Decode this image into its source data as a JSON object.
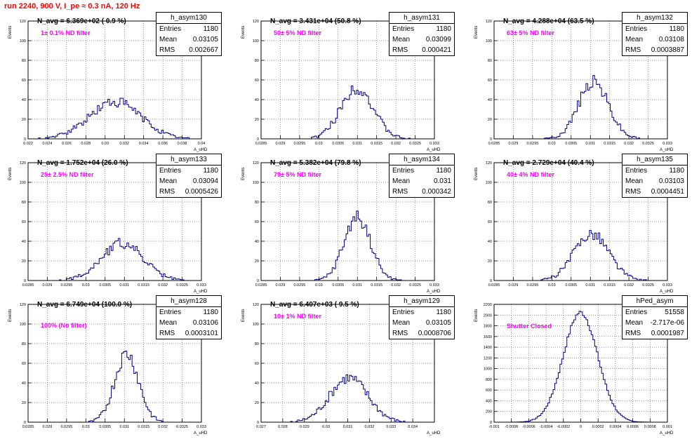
{
  "page_title": "run 2240,   900 V, I_pe ≈ 0.3 nA, 120 Hz",
  "axis": {
    "ylabel": "Events",
    "xlabel": "A_uHD"
  },
  "style": {
    "hist_color": "#000080",
    "filter_color": "#ff00ff",
    "title_color": "#ff0000"
  },
  "chart_data": [
    {
      "type": "bar",
      "name": "h_asym130",
      "navg": "N_avg = 6.369e+02 ( 0.9 %)",
      "filter": "1± 0.1% ND filter",
      "stats": {
        "entries": "1180",
        "mean": "0.03105",
        "rms": "0.002667"
      },
      "stats_labels": {
        "entries": "Entries",
        "mean": "Mean",
        "rms": "RMS"
      },
      "xlim": [
        0.022,
        0.04
      ],
      "ylim": [
        0,
        120
      ],
      "x_ticks": [
        "0.022",
        "0.024",
        "0.026",
        "0.028",
        "0.03",
        "0.032",
        "0.034",
        "0.036",
        "0.038",
        "0.04"
      ],
      "y_ticks": [
        "0",
        "20",
        "40",
        "60",
        "80",
        "100",
        "120"
      ],
      "hist": {
        "mean": 0.03105,
        "sigma": 0.002667,
        "peak": 38,
        "seed": 130
      }
    },
    {
      "type": "bar",
      "name": "h_asym131",
      "navg": "N_avg = 3.431e+04 (50.8 %)",
      "filter": "50± 5% ND filter",
      "stats": {
        "entries": "1180",
        "mean": "0.03099",
        "rms": "0.000421"
      },
      "stats_labels": {
        "entries": "Entries",
        "mean": "Mean",
        "rms": "RMS"
      },
      "xlim": [
        0.0285,
        0.033
      ],
      "ylim": [
        0,
        120
      ],
      "x_ticks": [
        "0.0285",
        "0.029",
        "0.0295",
        "0.03",
        "0.0305",
        "0.031",
        "0.0315",
        "0.032",
        "0.0325",
        "0.033"
      ],
      "y_ticks": [
        "0",
        "20",
        "40",
        "60",
        "80",
        "100",
        "120"
      ],
      "hist": {
        "mean": 0.03099,
        "sigma": 0.000421,
        "peak": 52,
        "seed": 131
      }
    },
    {
      "type": "bar",
      "name": "h_asym132",
      "navg": "N_avg = 4.288e+04 (63.5 %)",
      "filter": "63± 5% ND filter",
      "stats": {
        "entries": "1180",
        "mean": "0.03108",
        "rms": "0.0003887"
      },
      "stats_labels": {
        "entries": "Entries",
        "mean": "Mean",
        "rms": "RMS"
      },
      "xlim": [
        0.0285,
        0.033
      ],
      "ylim": [
        0,
        120
      ],
      "x_ticks": [
        "0.0285",
        "0.029",
        "0.0295",
        "0.03",
        "0.0305",
        "0.031",
        "0.0315",
        "0.032",
        "0.0325",
        "0.033"
      ],
      "y_ticks": [
        "0",
        "20",
        "40",
        "60",
        "80",
        "100",
        "120"
      ],
      "hist": {
        "mean": 0.03108,
        "sigma": 0.0003887,
        "peak": 58,
        "seed": 132
      }
    },
    {
      "type": "bar",
      "name": "h_asym133",
      "navg": "N_avg = 1.752e+04 (26.0 %)",
      "filter": "25± 2.5% ND filter",
      "stats": {
        "entries": "1180",
        "mean": "0.03094",
        "rms": "0.0005426"
      },
      "stats_labels": {
        "entries": "Entries",
        "mean": "Mean",
        "rms": "RMS"
      },
      "xlim": [
        0.0285,
        0.033
      ],
      "ylim": [
        0,
        120
      ],
      "x_ticks": [
        "0.0285",
        "0.029",
        "0.0295",
        "0.03",
        "0.0305",
        "0.031",
        "0.0315",
        "0.032",
        "0.0325",
        "0.033"
      ],
      "y_ticks": [
        "0",
        "20",
        "40",
        "60",
        "80",
        "100",
        "120"
      ],
      "hist": {
        "mean": 0.03094,
        "sigma": 0.0005426,
        "peak": 38,
        "seed": 133
      }
    },
    {
      "type": "bar",
      "name": "h_asym134",
      "navg": "N_avg = 5.382e+04 (79.8 %)",
      "filter": "79± 5% ND filter",
      "stats": {
        "entries": "1180",
        "mean": "0.031",
        "rms": "0.000342"
      },
      "stats_labels": {
        "entries": "Entries",
        "mean": "Mean",
        "rms": "RMS"
      },
      "xlim": [
        0.0285,
        0.033
      ],
      "ylim": [
        0,
        120
      ],
      "x_ticks": [
        "0.0285",
        "0.029",
        "0.0295",
        "0.03",
        "0.0305",
        "0.031",
        "0.0315",
        "0.032",
        "0.0325",
        "0.033"
      ],
      "y_ticks": [
        "0",
        "20",
        "40",
        "60",
        "80",
        "100",
        "120"
      ],
      "hist": {
        "mean": 0.031,
        "sigma": 0.000342,
        "peak": 65,
        "seed": 134
      }
    },
    {
      "type": "bar",
      "name": "h_asym135",
      "navg": "N_avg = 2.729e+04 (40.4 %)",
      "filter": "40± 4% ND filter",
      "stats": {
        "entries": "1180",
        "mean": "0.03103",
        "rms": "0.0004451"
      },
      "stats_labels": {
        "entries": "Entries",
        "mean": "Mean",
        "rms": "RMS"
      },
      "xlim": [
        0.0285,
        0.033
      ],
      "ylim": [
        0,
        120
      ],
      "x_ticks": [
        "0.0285",
        "0.029",
        "0.0295",
        "0.03",
        "0.0305",
        "0.031",
        "0.0315",
        "0.032",
        "0.0325",
        "0.033"
      ],
      "y_ticks": [
        "0",
        "20",
        "40",
        "60",
        "80",
        "100",
        "120"
      ],
      "hist": {
        "mean": 0.03103,
        "sigma": 0.0004451,
        "peak": 48,
        "seed": 135
      }
    },
    {
      "type": "bar",
      "name": "h_asym128",
      "navg": "N_avg = 6.749e+04 (100.0 %)",
      "filter": "100% (No filter)",
      "stats": {
        "entries": "1180",
        "mean": "0.03106",
        "rms": "0.0003101"
      },
      "stats_labels": {
        "entries": "Entries",
        "mean": "Mean",
        "rms": "RMS"
      },
      "xlim": [
        0.0285,
        0.033
      ],
      "ylim": [
        0,
        120
      ],
      "x_ticks": [
        "0.0285",
        "0.029",
        "0.0295",
        "0.03",
        "0.0305",
        "0.031",
        "0.0315",
        "0.032",
        "0.0325",
        "0.033"
      ],
      "y_ticks": [
        "0",
        "20",
        "40",
        "60",
        "80",
        "100",
        "120"
      ],
      "hist": {
        "mean": 0.03106,
        "sigma": 0.0003101,
        "peak": 70,
        "seed": 128
      }
    },
    {
      "type": "bar",
      "name": "h_asym129",
      "navg": "N_avg = 6.407e+03 ( 9.5 %)",
      "filter": "10± 1% ND filter",
      "stats": {
        "entries": "1180",
        "mean": "0.03105",
        "rms": "0.0008706"
      },
      "stats_labels": {
        "entries": "Entries",
        "mean": "Mean",
        "rms": "RMS"
      },
      "xlim": [
        0.027,
        0.035
      ],
      "ylim": [
        0,
        120
      ],
      "x_ticks": [
        "0.027",
        "0.028",
        "0.029",
        "0.03",
        "0.031",
        "0.032",
        "0.033",
        "0.034"
      ],
      "y_ticks": [
        "0",
        "20",
        "40",
        "60",
        "80",
        "100",
        "120"
      ],
      "hist": {
        "mean": 0.03105,
        "sigma": 0.0008706,
        "peak": 45,
        "seed": 129
      }
    },
    {
      "type": "bar",
      "name": "hPed_asym",
      "navg": "",
      "filter": "Shutter Closed",
      "stats": {
        "entries": "51558",
        "mean": "-2.717e-06",
        "rms": "0.0001987"
      },
      "stats_labels": {
        "entries": "Entries",
        "mean": "Mean",
        "rms": "RMS"
      },
      "xlim": [
        -0.001,
        0.001
      ],
      "ylim": [
        0,
        2200
      ],
      "x_ticks": [
        "-0.001",
        "-0.0008",
        "-0.0006",
        "-0.0004",
        "-0.0002",
        "0",
        "0.0002",
        "0.0004",
        "0.0006",
        "0.0008",
        "0.001"
      ],
      "y_ticks": [
        "0",
        "200",
        "400",
        "600",
        "800",
        "1000",
        "1200",
        "1400",
        "1600",
        "1800",
        "2000",
        "2200"
      ],
      "hist": {
        "mean": -2.717e-06,
        "sigma": 0.0001987,
        "peak": 2050,
        "seed": 7
      }
    }
  ]
}
